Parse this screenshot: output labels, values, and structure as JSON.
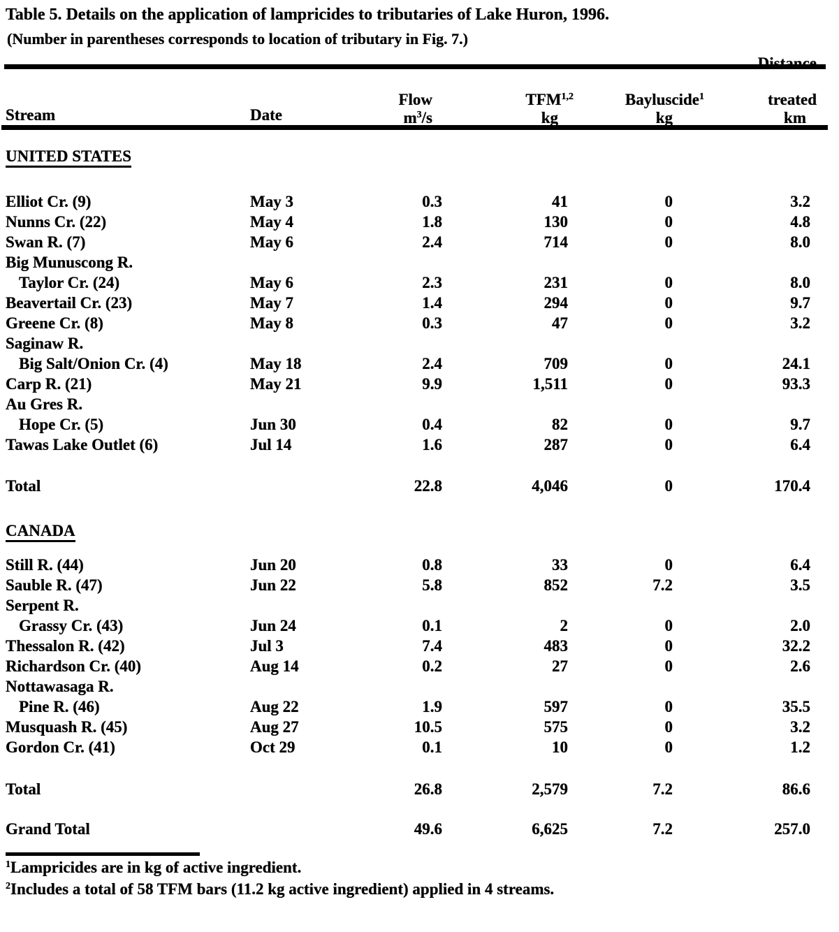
{
  "title": {
    "line1": "Table 5.  Details on the application of lampricides to tributaries of Lake Huron, 1996.",
    "line2": "(Number in parentheses corresponds to location of tributary in Fig. 7.)"
  },
  "table": {
    "headers": {
      "stream": "Stream",
      "date": "Date",
      "flow": {
        "line1": "Flow",
        "unit_base": "m",
        "unit_sup": "3",
        "unit_rest": "/s"
      },
      "tfm": {
        "name": "TFM",
        "sup": "1,2",
        "unit": "kg"
      },
      "bayluscide": {
        "name": "Bayluscide",
        "sup": "1",
        "unit": "kg"
      },
      "distance": {
        "line1": "Distance",
        "line2": "treated",
        "unit": "km"
      }
    },
    "sections": [
      {
        "name": "UNITED STATES",
        "rows": [
          {
            "stream": "Elliot Cr. (9)",
            "date": "May 3",
            "flow": "0.3",
            "tfm": "41",
            "bayluscide": "0",
            "distance": "3.2",
            "indent": false
          },
          {
            "stream": "Nunns Cr. (22)",
            "date": "May 4",
            "flow": "1.8",
            "tfm": "130",
            "bayluscide": "0",
            "distance": "4.8",
            "indent": false
          },
          {
            "stream": "Swan R. (7)",
            "date": "May 6",
            "flow": "2.4",
            "tfm": "714",
            "bayluscide": "0",
            "distance": "8.0",
            "indent": false
          },
          {
            "stream": "Big Munuscong R.",
            "date": "",
            "flow": "",
            "tfm": "",
            "bayluscide": "",
            "distance": "",
            "indent": false
          },
          {
            "stream": "Taylor Cr. (24)",
            "date": "May 6",
            "flow": "2.3",
            "tfm": "231",
            "bayluscide": "0",
            "distance": "8.0",
            "indent": true
          },
          {
            "stream": "Beavertail Cr. (23)",
            "date": "May 7",
            "flow": "1.4",
            "tfm": "294",
            "bayluscide": "0",
            "distance": "9.7",
            "indent": false
          },
          {
            "stream": "Greene Cr. (8)",
            "date": "May 8",
            "flow": "0.3",
            "tfm": "47",
            "bayluscide": "0",
            "distance": "3.2",
            "indent": false
          },
          {
            "stream": "Saginaw R.",
            "date": "",
            "flow": "",
            "tfm": "",
            "bayluscide": "",
            "distance": "",
            "indent": false
          },
          {
            "stream": "Big Salt/Onion Cr. (4)",
            "date": "May 18",
            "flow": "2.4",
            "tfm": "709",
            "bayluscide": "0",
            "distance": "24.1",
            "indent": true
          },
          {
            "stream": "Carp R. (21)",
            "date": "May 21",
            "flow": "9.9",
            "tfm": "1,511",
            "bayluscide": "0",
            "distance": "93.3",
            "indent": false
          },
          {
            "stream": "Au Gres R.",
            "date": "",
            "flow": "",
            "tfm": "",
            "bayluscide": "",
            "distance": "",
            "indent": false
          },
          {
            "stream": "Hope Cr. (5)",
            "date": "Jun 30",
            "flow": "0.4",
            "tfm": "82",
            "bayluscide": "0",
            "distance": "9.7",
            "indent": true
          },
          {
            "stream": "Tawas Lake Outlet (6)",
            "date": "Jul 14",
            "flow": "1.6",
            "tfm": "287",
            "bayluscide": "0",
            "distance": "6.4",
            "indent": false
          }
        ],
        "total": {
          "label": "Total",
          "flow": "22.8",
          "tfm": "4,046",
          "bayluscide": "0",
          "distance": "170.4"
        }
      },
      {
        "name": "CANADA",
        "rows": [
          {
            "stream": "Still R. (44)",
            "date": "Jun 20",
            "flow": "0.8",
            "tfm": "33",
            "bayluscide": "0",
            "distance": "6.4",
            "indent": false
          },
          {
            "stream": "Sauble R. (47)",
            "date": "Jun 22",
            "flow": "5.8",
            "tfm": "852",
            "bayluscide": "7.2",
            "distance": "3.5",
            "indent": false
          },
          {
            "stream": "Serpent R.",
            "date": "",
            "flow": "",
            "tfm": "",
            "bayluscide": "",
            "distance": "",
            "indent": false
          },
          {
            "stream": "Grassy Cr. (43)",
            "date": "Jun 24",
            "flow": "0.1",
            "tfm": "2",
            "bayluscide": "0",
            "distance": "2.0",
            "indent": true
          },
          {
            "stream": "Thessalon R. (42)",
            "date": "Jul 3",
            "flow": "7.4",
            "tfm": "483",
            "bayluscide": "0",
            "distance": "32.2",
            "indent": false
          },
          {
            "stream": "Richardson Cr. (40)",
            "date": "Aug 14",
            "flow": "0.2",
            "tfm": "27",
            "bayluscide": "0",
            "distance": "2.6",
            "indent": false
          },
          {
            "stream": "Nottawasaga R.",
            "date": "",
            "flow": "",
            "tfm": "",
            "bayluscide": "",
            "distance": "",
            "indent": false
          },
          {
            "stream": "Pine R. (46)",
            "date": "Aug 22",
            "flow": "1.9",
            "tfm": "597",
            "bayluscide": "0",
            "distance": "35.5",
            "indent": true
          },
          {
            "stream": "Musquash R. (45)",
            "date": "Aug 27",
            "flow": "10.5",
            "tfm": "575",
            "bayluscide": "0",
            "distance": "3.2",
            "indent": false
          },
          {
            "stream": "Gordon Cr. (41)",
            "date": "Oct 29",
            "flow": "0.1",
            "tfm": "10",
            "bayluscide": "0",
            "distance": "1.2",
            "indent": false
          }
        ],
        "total": {
          "label": "Total",
          "flow": "26.8",
          "tfm": "2,579",
          "bayluscide": "7.2",
          "distance": "86.6"
        }
      }
    ],
    "grand_total": {
      "label": "Grand Total",
      "flow": "49.6",
      "tfm": "6,625",
      "bayluscide": "7.2",
      "distance": "257.0"
    }
  },
  "footnotes": [
    {
      "marker": "1",
      "text": "Lampricides are in kg of active ingredient."
    },
    {
      "marker": "2",
      "text": "Includes a total of 58 TFM bars (11.2 kg active ingredient) applied in 4 streams."
    }
  ]
}
